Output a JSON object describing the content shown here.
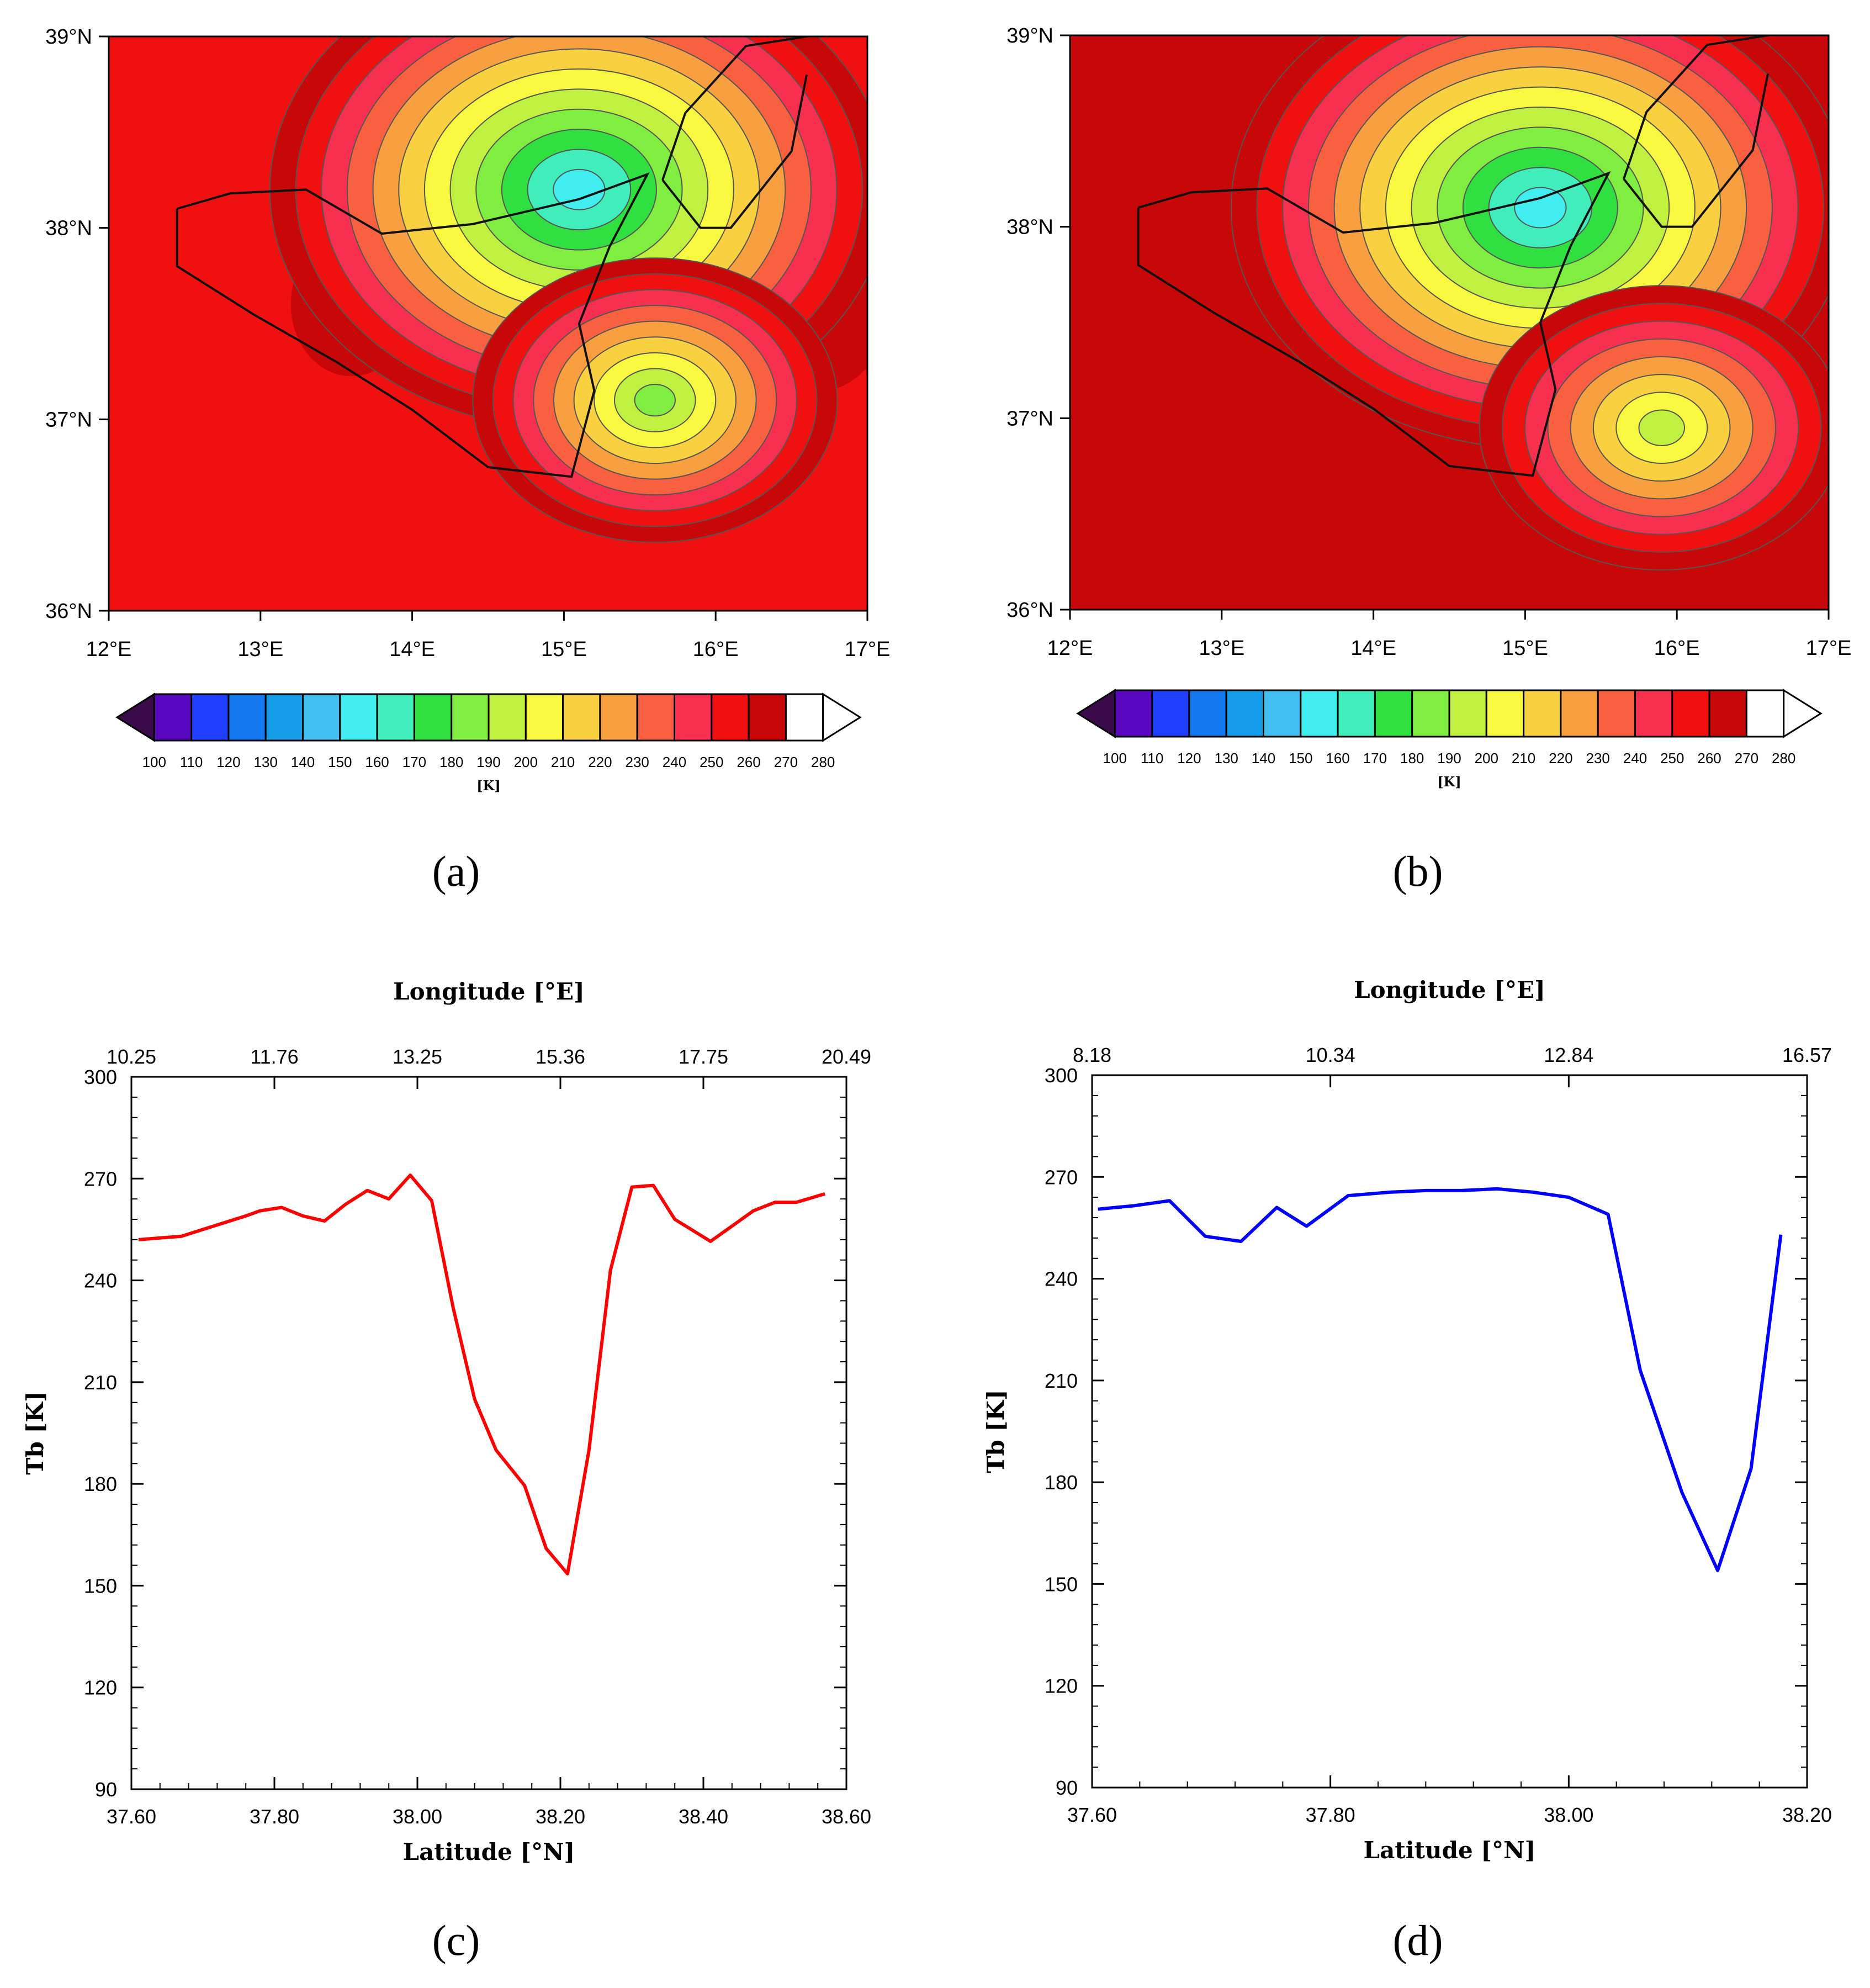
{
  "chart_data": [
    {
      "type": "heatmap",
      "panel": "(a)",
      "description_axes": {
        "x_ticks": [
          "12°E",
          "13°E",
          "14°E",
          "15°E",
          "16°E",
          "17°E"
        ],
        "y_ticks": [
          "39°N",
          "38°N",
          "37°N",
          "36°N"
        ],
        "xlim": [
          12,
          17
        ],
        "ylim": [
          36,
          39
        ]
      },
      "colorbar": {
        "ticks": [
          "100",
          "110",
          "120",
          "130",
          "140",
          "150",
          "160",
          "170",
          "180",
          "190",
          "200",
          "210",
          "220",
          "230",
          "240",
          "250",
          "260",
          "270",
          "280"
        ],
        "unit": "[K]",
        "colors": [
          "#3a0a4a",
          "#5a08c0",
          "#2040ff",
          "#1478f0",
          "#149ce8",
          "#40bff0",
          "#40eef0",
          "#40eebc",
          "#30e040",
          "#80ee40",
          "#c0f040",
          "#f8f840",
          "#f8d040",
          "#f8a040",
          "#f86040",
          "#f83050",
          "#f01010",
          "#c80808",
          "#ffffff"
        ]
      },
      "cold_cores": [
        {
          "lon": 15.1,
          "lat": 38.2,
          "min_k": 160
        },
        {
          "lon": 15.6,
          "lat": 37.1,
          "min_k": 190
        }
      ]
    },
    {
      "type": "heatmap",
      "panel": "(b)",
      "description_axes": {
        "x_ticks": [
          "12°E",
          "13°E",
          "14°E",
          "15°E",
          "16°E",
          "17°E"
        ],
        "y_ticks": [
          "39°N",
          "38°N",
          "37°N",
          "36°N"
        ],
        "xlim": [
          12,
          17
        ],
        "ylim": [
          36,
          39
        ]
      },
      "colorbar": {
        "ticks": [
          "100",
          "110",
          "120",
          "130",
          "140",
          "150",
          "160",
          "170",
          "180",
          "190",
          "200",
          "210",
          "220",
          "230",
          "240",
          "250",
          "260",
          "270",
          "280"
        ],
        "unit": "[K]"
      },
      "cold_cores": [
        {
          "lon": 15.1,
          "lat": 38.1,
          "min_k": 160
        },
        {
          "lon": 15.9,
          "lat": 36.95,
          "min_k": 200
        }
      ]
    },
    {
      "type": "line",
      "panel": "(c)",
      "xlabel": "Latitude [°N]",
      "x2label": "Longitude [°E]",
      "ylabel": "Tb [K]",
      "xlim": [
        37.6,
        38.6
      ],
      "ylim": [
        90,
        300
      ],
      "x_ticks": [
        "37.60",
        "37.80",
        "38.00",
        "38.20",
        "38.40",
        "38.60"
      ],
      "x2_ticks": [
        "10.25",
        "11.76",
        "13.25",
        "15.36",
        "17.75",
        "20.49"
      ],
      "y_ticks": [
        "90",
        "120",
        "150",
        "180",
        "210",
        "240",
        "270",
        "300"
      ],
      "color": "#ff0000",
      "x": [
        37.61,
        37.64,
        37.67,
        37.7,
        37.73,
        37.76,
        37.78,
        37.81,
        37.84,
        37.87,
        37.9,
        37.93,
        37.96,
        37.99,
        38.02,
        38.05,
        38.08,
        38.11,
        38.15,
        38.18,
        38.21,
        38.24,
        38.27,
        38.3,
        38.33,
        38.36,
        38.41,
        38.44,
        38.47,
        38.5,
        38.53,
        38.57
      ],
      "y": [
        252,
        252.5,
        253,
        255,
        257,
        259,
        260.5,
        261.5,
        259,
        257.5,
        262.5,
        266.5,
        264,
        271,
        263.5,
        232,
        205,
        190,
        179.5,
        161,
        153.5,
        190,
        243,
        267.5,
        268,
        258,
        251.5,
        256,
        260.5,
        263,
        263,
        265.5
      ]
    },
    {
      "type": "line",
      "panel": "(d)",
      "xlabel": "Latitude [°N]",
      "x2label": "Longitude [°E]",
      "ylabel": "Tb [K]",
      "xlim": [
        37.6,
        38.2
      ],
      "ylim": [
        90,
        300
      ],
      "x_ticks": [
        "37.60",
        "37.80",
        "38.00",
        "38.20"
      ],
      "x2_ticks": [
        "8.18",
        "10.34",
        "12.84",
        "16.57"
      ],
      "y_ticks": [
        "90",
        "120",
        "150",
        "180",
        "210",
        "240",
        "270",
        "300"
      ],
      "color": "#0000ff",
      "x": [
        37.605,
        37.635,
        37.665,
        37.695,
        37.725,
        37.755,
        37.78,
        37.815,
        37.85,
        37.88,
        37.91,
        37.94,
        37.97,
        38.0,
        38.033,
        38.06,
        38.095,
        38.125,
        38.153,
        38.178
      ],
      "y": [
        260.5,
        261.5,
        263,
        252.5,
        251,
        261,
        255.5,
        264.5,
        265.5,
        266,
        266,
        266.5,
        265.5,
        264,
        259,
        213,
        177,
        154,
        184,
        253
      ]
    }
  ],
  "panel_labels": {
    "a": "(a)",
    "b": "(b)",
    "c": "(c)",
    "d": "(d)"
  }
}
